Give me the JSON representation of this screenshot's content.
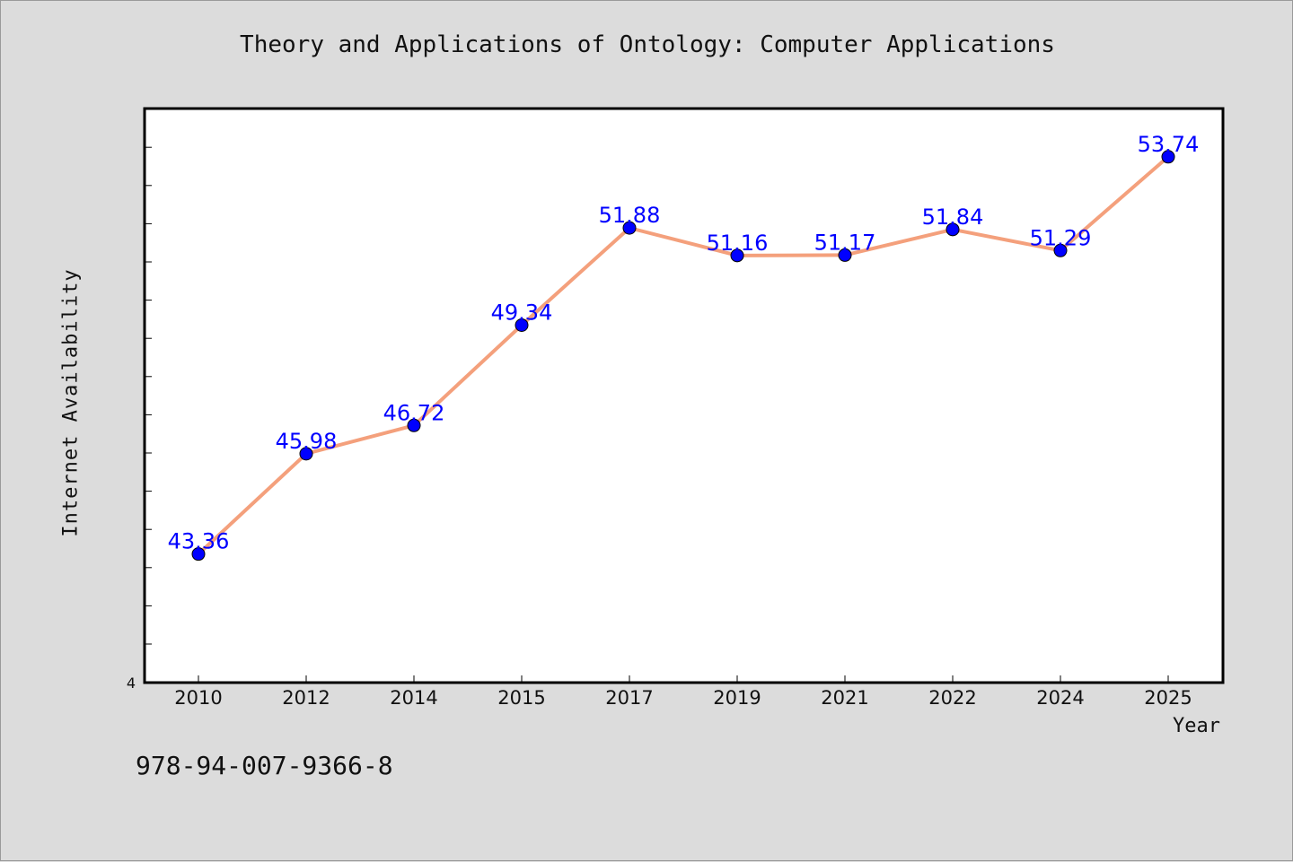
{
  "title": "Theory and Applications of Ontology: Computer Applications",
  "footer_text": "978-94-007-9366-8",
  "chart_data": {
    "type": "line",
    "title": "Theory and Applications of Ontology: Computer Applications",
    "xlabel": "Year",
    "ylabel": "Internet Availability",
    "categories": [
      "2010",
      "2012",
      "2014",
      "2015",
      "2017",
      "2019",
      "2021",
      "2022",
      "2024",
      "2025"
    ],
    "series": [
      {
        "values": [
          43.36,
          45.98,
          46.72,
          49.34,
          51.88,
          51.16,
          51.17,
          51.84,
          51.29,
          53.74
        ]
      }
    ],
    "value_labels": [
      "43.36",
      "45.98",
      "46.72",
      "49.34",
      "51.88",
      "51.16",
      "51.17",
      "51.84",
      "51.29",
      "53.74"
    ],
    "y_tick_label": "4",
    "ylim": [
      40,
      55
    ],
    "grid": false,
    "line_color": "#f4a07c",
    "marker_color": "#0000ff",
    "label_color": "#0000ff"
  }
}
